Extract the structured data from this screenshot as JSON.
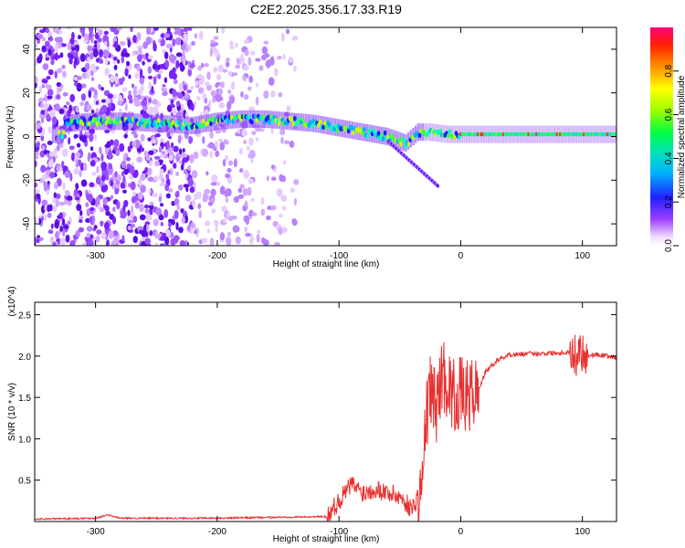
{
  "title": "C2E2.2025.356.17.33.R19",
  "chart_data": [
    {
      "type": "heatmap",
      "xlabel": "Height of straight line (km)",
      "ylabel": "Frequency (Hz)",
      "xlim": [
        -350,
        128
      ],
      "ylim": [
        -50,
        50
      ],
      "xticks": [
        -300,
        -200,
        -100,
        0,
        100
      ],
      "yticks": [
        -40,
        -20,
        0,
        20,
        40
      ],
      "colorbar": {
        "label": "Normalized spectral amplitude",
        "range": [
          0,
          1
        ],
        "ticks": [
          0.0,
          0.2,
          0.4,
          0.6,
          0.8
        ]
      },
      "trace": {
        "x": [
          -325,
          -300,
          -280,
          -250,
          -220,
          -200,
          -180,
          -160,
          -140,
          -120,
          -100,
          -80,
          -60,
          -45,
          -35,
          -25,
          -10,
          0,
          50,
          100,
          128
        ],
        "y": [
          6,
          7,
          7,
          6,
          5,
          7,
          8,
          8,
          7,
          6,
          4,
          2,
          0,
          -3,
          2,
          2,
          1,
          1,
          1,
          1,
          1
        ]
      }
    },
    {
      "type": "line",
      "xlabel": "Height of straight line (km)",
      "ylabel": "SNR (10 * v/v)",
      "y_exponent_label": "(x10^4)",
      "xlim": [
        -350,
        128
      ],
      "ylim": [
        0,
        2.65
      ],
      "xticks": [
        -300,
        -200,
        -100,
        0,
        100
      ],
      "yticks": [
        0.5,
        1.0,
        1.5,
        2.0,
        2.5
      ],
      "series": [
        {
          "name": "SNR",
          "color": "#e83030",
          "x": [
            -350,
            -300,
            -290,
            -280,
            -200,
            -110,
            -100,
            -90,
            -80,
            -70,
            -60,
            -50,
            -40,
            -32,
            -28,
            -25,
            -20,
            -15,
            -10,
            -5,
            0,
            5,
            10,
            15,
            20,
            30,
            40,
            60,
            80,
            90,
            95,
            98,
            100,
            105,
            110,
            120,
            128
          ],
          "y": [
            0.03,
            0.04,
            0.08,
            0.04,
            0.04,
            0.06,
            0.25,
            0.45,
            0.35,
            0.4,
            0.35,
            0.3,
            0.15,
            0.4,
            1.3,
            1.6,
            1.4,
            1.8,
            1.65,
            1.5,
            1.55,
            1.5,
            1.55,
            1.6,
            1.8,
            1.95,
            2.02,
            2.03,
            2.04,
            2.05,
            2.0,
            2.1,
            2.05,
            2.0,
            2.02,
            2.0,
            1.98
          ]
        }
      ]
    }
  ]
}
